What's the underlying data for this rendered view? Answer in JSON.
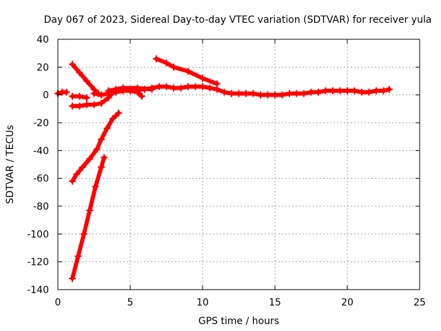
{
  "chart_data": {
    "type": "scatter",
    "title": "Day 067 of 2023, Sidereal Day-to-day VTEC variation (SDTVAR) for receiver yula",
    "xlabel": "GPS time / hours",
    "ylabel": "SDTVAR / TECUs",
    "xlim": [
      0,
      25
    ],
    "ylim": [
      -140,
      40
    ],
    "xticks": [
      0,
      5,
      10,
      15,
      20,
      25
    ],
    "yticks": [
      -140,
      -120,
      -100,
      -80,
      -60,
      -40,
      -20,
      0,
      20,
      40
    ],
    "grid": true,
    "marker": "plus",
    "color": "#ff0000",
    "series": [
      {
        "x": [
          0.0,
          0.3,
          0.6
        ],
        "y": [
          1,
          2,
          2
        ]
      },
      {
        "x": [
          1.0,
          1.5,
          2.0,
          2.5,
          3.0,
          3.5,
          4.0,
          4.5,
          5.0,
          5.5,
          6.0,
          6.5,
          7.0,
          7.5,
          8.0,
          8.5,
          9.0,
          9.5,
          10.0,
          10.5,
          11.0,
          11.5,
          12.0,
          12.5,
          13.0,
          13.5,
          14.0,
          14.5,
          15.0,
          15.5,
          16.0,
          16.5,
          17.0,
          17.5,
          18.0,
          18.5,
          19.0,
          19.5,
          20.0,
          20.5,
          21.0,
          21.5,
          22.0,
          22.5,
          22.9
        ],
        "y": [
          -8,
          -8,
          -7,
          -7,
          -6,
          -2,
          4,
          5,
          4,
          4,
          4,
          5,
          6,
          6,
          5,
          5,
          6,
          6,
          6,
          5,
          4,
          2,
          1,
          1,
          1,
          1,
          0,
          0,
          0,
          0,
          1,
          1,
          1,
          2,
          2,
          3,
          3,
          3,
          3,
          3,
          2,
          2,
          3,
          3,
          4
        ]
      },
      {
        "x": [
          1.0,
          1.5,
          2.0,
          2.5,
          2.8
        ],
        "y": [
          22,
          16,
          10,
          4,
          1
        ]
      },
      {
        "x": [
          1.0,
          1.5,
          2.0
        ],
        "y": [
          -1,
          -1,
          -2
        ]
      },
      {
        "x": [
          1.0,
          1.3,
          1.7,
          2.2,
          2.7,
          3.0,
          3.4,
          3.8,
          4.2
        ],
        "y": [
          -62,
          -57,
          -52,
          -46,
          -39,
          -32,
          -24,
          -17,
          -13
        ]
      },
      {
        "x": [
          1.0,
          1.4,
          1.8,
          2.2,
          2.6,
          3.0,
          3.2
        ],
        "y": [
          -132,
          -116,
          -100,
          -83,
          -66,
          -52,
          -45
        ]
      },
      {
        "x": [
          2.5,
          3.0,
          3.5,
          4.0,
          4.5,
          5.0,
          5.5,
          5.8
        ],
        "y": [
          1,
          0,
          1,
          2,
          3,
          3,
          2,
          -1
        ]
      },
      {
        "x": [
          6.8,
          7.5,
          8.0,
          9.0,
          10.0,
          11.0
        ],
        "y": [
          26,
          23,
          20,
          17,
          12,
          8
        ]
      },
      {
        "x": [
          3.5,
          4.5,
          5.5,
          6.5
        ],
        "y": [
          3,
          5,
          5,
          4
        ]
      }
    ]
  }
}
